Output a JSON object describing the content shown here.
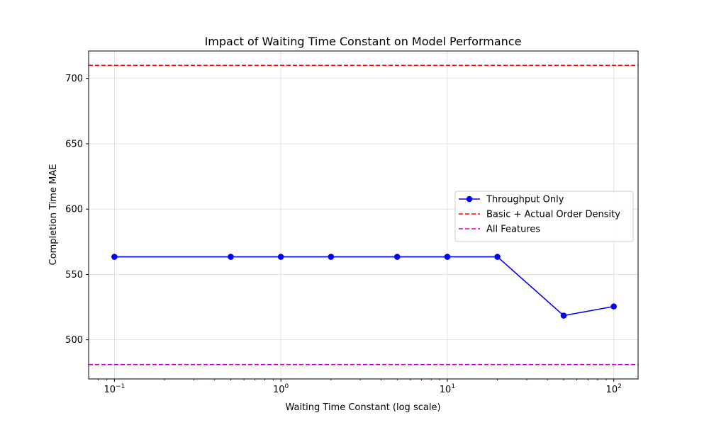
{
  "chart_data": {
    "type": "line",
    "title": "Impact of Waiting Time Constant on Model Performance",
    "xlabel": "Waiting Time Constant (log scale)",
    "ylabel": "Completion Time MAE",
    "xscale": "log",
    "xlim": [
      0.07,
      140
    ],
    "ylim": [
      470,
      721
    ],
    "grid": true,
    "legend_position": "center-right",
    "x_ticks": [
      {
        "value": 0.1,
        "base": "10",
        "exp": "−1"
      },
      {
        "value": 1,
        "base": "10",
        "exp": "0"
      },
      {
        "value": 10,
        "base": "10",
        "exp": "1"
      },
      {
        "value": 100,
        "base": "10",
        "exp": "2"
      }
    ],
    "y_ticks": [
      {
        "value": 500,
        "label": "500"
      },
      {
        "value": 550,
        "label": "550"
      },
      {
        "value": 600,
        "label": "600"
      },
      {
        "value": 650,
        "label": "650"
      },
      {
        "value": 700,
        "label": "700"
      }
    ],
    "series": [
      {
        "name": "Throughput Only",
        "kind": "line-marker",
        "color": "#0000ff",
        "x": [
          0.1,
          0.5,
          1,
          2,
          5,
          10,
          20,
          50,
          100
        ],
        "y": [
          563.5,
          563.5,
          563.5,
          563.5,
          563.5,
          563.5,
          563.5,
          518.5,
          525.5
        ]
      },
      {
        "name": "Basic + Actual Order Density",
        "kind": "hline",
        "color": "#ff0000",
        "y": 710
      },
      {
        "name": "All Features",
        "kind": "hline",
        "color": "#cc00cc",
        "y": 481
      }
    ]
  }
}
